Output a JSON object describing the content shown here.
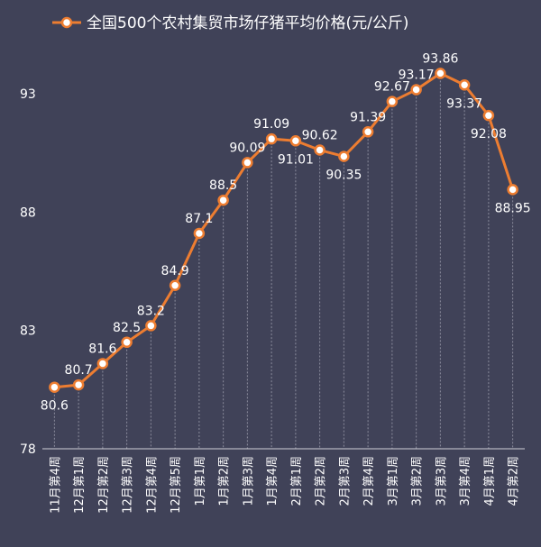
{
  "chart_data": {
    "type": "line",
    "title": "",
    "xlabel": "",
    "ylabel": "",
    "ylim": [
      78,
      95
    ],
    "yticks": [
      78,
      83,
      88,
      93
    ],
    "grid": "vertical dashed drop lines",
    "legend_position": "top",
    "categories": [
      "11月第4周",
      "12月第1周",
      "12月第2周",
      "12月第3周",
      "12月第4周",
      "12月第5周",
      "1月第1周",
      "1月第2周",
      "1月第3周",
      "1月第4周",
      "2月第1周",
      "2月第2周",
      "2月第3周",
      "2月第4周",
      "3月第1周",
      "3月第2周",
      "3月第3周",
      "3月第4周",
      "4月第1周",
      "4月第2周"
    ],
    "series": [
      {
        "name": "全国500个农村集贸市场仔猪平均价格(元/公斤)",
        "values": [
          80.6,
          80.7,
          81.6,
          82.5,
          83.2,
          84.9,
          87.1,
          88.5,
          90.09,
          91.09,
          91.01,
          90.62,
          90.35,
          91.39,
          92.67,
          93.17,
          93.86,
          93.37,
          92.08,
          88.95
        ],
        "labels": [
          "80.6",
          "80.7",
          "81.6",
          "82.5",
          "83.2",
          "84.9",
          "87.1",
          "88.5",
          "90.09",
          "91.09",
          "91.01",
          "90.62",
          "90.35",
          "91.39",
          "92.67",
          "93.17",
          "93.86",
          "93.37",
          "92.08",
          "88.95"
        ],
        "color": "#ED7D31"
      }
    ],
    "colors": {
      "background": "#404258",
      "text": "#ffffff",
      "line": "#ED7D31",
      "marker_fill": "#ffffff",
      "grid": "#8a8c9c"
    }
  }
}
